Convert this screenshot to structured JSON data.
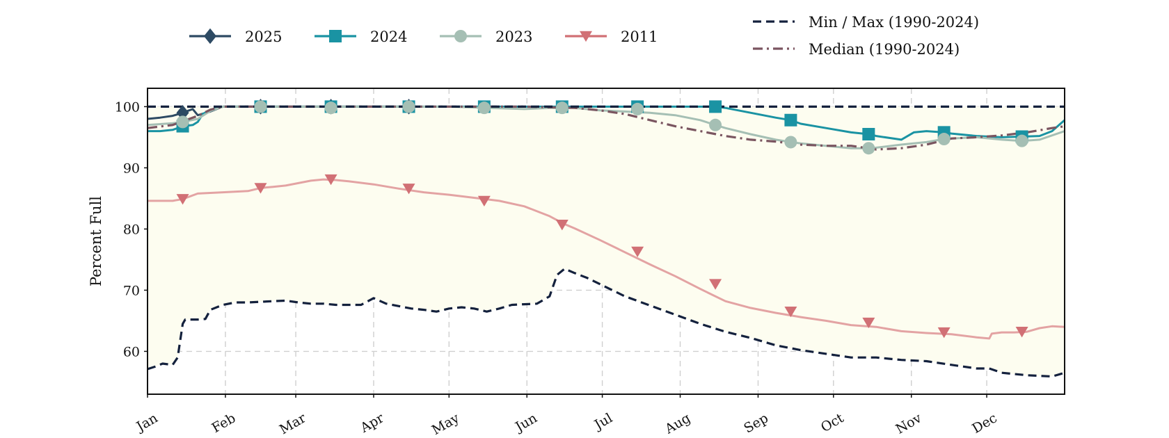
{
  "chart_data": {
    "type": "line",
    "title": "",
    "xlabel": "",
    "ylabel": "Percent Full",
    "xlim": [
      0,
      365
    ],
    "ylim": [
      53,
      103
    ],
    "y_ticks": [
      60,
      70,
      80,
      90,
      100
    ],
    "month_ticks": [
      {
        "label": "Jan",
        "day": 0
      },
      {
        "label": "Feb",
        "day": 31
      },
      {
        "label": "Mar",
        "day": 59
      },
      {
        "label": "Apr",
        "day": 90
      },
      {
        "label": "May",
        "day": 120
      },
      {
        "label": "Jun",
        "day": 151
      },
      {
        "label": "Jul",
        "day": 181
      },
      {
        "label": "Aug",
        "day": 212
      },
      {
        "label": "Sep",
        "day": 243
      },
      {
        "label": "Oct",
        "day": 273
      },
      {
        "label": "Nov",
        "day": 304
      },
      {
        "label": "Dec",
        "day": 334
      }
    ],
    "grid": true,
    "legend_position": "top",
    "shaded_band": {
      "between": [
        "Min (1990-2024)",
        "Max (1990-2024)"
      ],
      "color": "#fdfdf0"
    },
    "series": [
      {
        "name": "Max (1990-2024)",
        "legend": "Min / Max (1990-2024)",
        "color": "#14213d",
        "style": "dashed",
        "marker": "none",
        "x": [
          0,
          365
        ],
        "y": [
          100,
          100
        ]
      },
      {
        "name": "Min (1990-2024)",
        "legend": "Min / Max (1990-2024)",
        "color": "#14213d",
        "style": "dashed",
        "marker": "none",
        "x": [
          0,
          3,
          6,
          10,
          12,
          14,
          15,
          20,
          23,
          25,
          30,
          35,
          40,
          45,
          50,
          55,
          60,
          65,
          70,
          75,
          85,
          90,
          95,
          100,
          105,
          110,
          115,
          120,
          125,
          130,
          135,
          140,
          145,
          150,
          155,
          160,
          163,
          166,
          170,
          175,
          180,
          190,
          200,
          210,
          220,
          230,
          240,
          250,
          260,
          270,
          280,
          285,
          290,
          300,
          310,
          320,
          330,
          335,
          340,
          350,
          360,
          365
        ],
        "y": [
          57.1,
          57.5,
          58.0,
          57.8,
          59.0,
          64.5,
          65.2,
          65.2,
          65.3,
          66.8,
          67.6,
          68.0,
          68.0,
          68.1,
          68.2,
          68.3,
          68.0,
          67.8,
          67.8,
          67.6,
          67.6,
          68.7,
          67.8,
          67.4,
          67.0,
          66.8,
          66.5,
          67.0,
          67.2,
          67.0,
          66.5,
          67.0,
          67.6,
          67.7,
          67.8,
          69.0,
          72.5,
          73.5,
          72.8,
          72.0,
          71.0,
          69.0,
          67.5,
          66.0,
          64.5,
          63.2,
          62.2,
          61.0,
          60.2,
          59.6,
          59.0,
          59.0,
          59.0,
          58.6,
          58.4,
          57.8,
          57.2,
          57.2,
          56.5,
          56.1,
          55.9,
          56.5
        ]
      },
      {
        "name": "Median (1990-2024)",
        "legend": "Median (1990-2024)",
        "color": "#7a5560",
        "style": "dashdot",
        "marker": "none",
        "x": [
          0,
          10,
          20,
          25,
          30,
          60,
          90,
          120,
          150,
          170,
          180,
          190,
          200,
          210,
          220,
          230,
          240,
          250,
          260,
          270,
          280,
          290,
          300,
          310,
          320,
          330,
          340,
          350,
          360,
          365
        ],
        "y": [
          96.5,
          97.0,
          98.5,
          99.5,
          100,
          100,
          100,
          100,
          100,
          99.8,
          99.4,
          98.8,
          97.8,
          96.8,
          96.0,
          95.2,
          94.6,
          94.3,
          93.8,
          93.6,
          93.6,
          93.0,
          93.2,
          93.8,
          94.8,
          95.0,
          95.3,
          95.8,
          96.5,
          96.8
        ]
      },
      {
        "name": "2011",
        "legend": "2011",
        "color": "#e3a3a3",
        "style": "solid",
        "marker": "triangle-down",
        "marker_color": "#d17075",
        "x": [
          0,
          10,
          14,
          20,
          30,
          40,
          45,
          50,
          55,
          60,
          65,
          70,
          75,
          80,
          90,
          100,
          110,
          120,
          130,
          140,
          150,
          160,
          166,
          170,
          180,
          190,
          200,
          210,
          220,
          230,
          240,
          250,
          260,
          270,
          280,
          290,
          300,
          310,
          320,
          330,
          335,
          336,
          340,
          345,
          350,
          355,
          360,
          365
        ],
        "y": [
          84.6,
          84.6,
          84.9,
          85.8,
          86.0,
          86.2,
          86.7,
          86.9,
          87.1,
          87.5,
          87.9,
          88.1,
          88.0,
          87.8,
          87.3,
          86.6,
          86.0,
          85.6,
          85.1,
          84.6,
          83.7,
          82.1,
          80.8,
          80.1,
          78.2,
          76.2,
          74.2,
          72.3,
          70.2,
          68.2,
          67.1,
          66.3,
          65.6,
          65.0,
          64.3,
          64.0,
          63.3,
          63.0,
          62.8,
          62.3,
          62.1,
          62.9,
          63.1,
          63.1,
          63.2,
          63.8,
          64.1,
          64.0
        ],
        "markers_x": [
          14,
          45,
          73,
          104,
          134,
          165,
          195,
          226,
          256,
          287,
          317,
          348
        ],
        "markers_y": [
          84.9,
          86.7,
          88.1,
          86.6,
          84.6,
          80.7,
          76.3,
          71.0,
          66.5,
          64.7,
          63.1,
          63.2
        ]
      },
      {
        "name": "2023",
        "legend": "2023",
        "color": "#a5bfb4",
        "style": "solid",
        "marker": "circle",
        "marker_color": "#a5bfb4",
        "x": [
          0,
          10,
          14,
          20,
          25,
          30,
          60,
          90,
          120,
          150,
          160,
          170,
          180,
          190,
          200,
          210,
          220,
          226,
          230,
          240,
          250,
          256,
          260,
          270,
          280,
          287,
          290,
          300,
          310,
          317,
          320,
          330,
          340,
          348,
          355,
          365
        ],
        "y": [
          97.0,
          97.3,
          97.5,
          98.0,
          99.3,
          100,
          100,
          100,
          100,
          99.6,
          99.8,
          99.8,
          99.4,
          99.2,
          99.0,
          98.6,
          97.8,
          97.0,
          96.5,
          95.5,
          94.6,
          94.2,
          94.0,
          93.6,
          93.2,
          93.2,
          93.3,
          93.8,
          94.2,
          94.7,
          94.8,
          95.0,
          94.6,
          94.4,
          94.6,
          96.0
        ],
        "markers_x": [
          14,
          45,
          73,
          104,
          134,
          165,
          195,
          226,
          256,
          287,
          317,
          348
        ],
        "markers_y": [
          97.5,
          100,
          99.8,
          100,
          99.8,
          99.8,
          99.6,
          97.0,
          94.2,
          93.2,
          94.7,
          94.4
        ]
      },
      {
        "name": "2024",
        "legend": "2024",
        "color": "#1a93a3",
        "style": "solid",
        "marker": "square",
        "marker_color": "#1a93a3",
        "x": [
          0,
          5,
          10,
          14,
          18,
          20,
          22,
          25,
          30,
          60,
          90,
          120,
          150,
          180,
          210,
          226,
          230,
          240,
          250,
          256,
          260,
          270,
          280,
          287,
          290,
          300,
          305,
          310,
          317,
          320,
          330,
          340,
          348,
          355,
          360,
          365
        ],
        "y": [
          96.0,
          96.0,
          96.2,
          96.8,
          97.0,
          97.5,
          98.8,
          99.5,
          100,
          100,
          100,
          100,
          100,
          100,
          100,
          100,
          99.8,
          99.0,
          98.2,
          97.8,
          97.2,
          96.5,
          95.8,
          95.5,
          95.2,
          94.6,
          95.8,
          96.0,
          95.8,
          95.6,
          95.2,
          95.0,
          95.1,
          95.2,
          96.0,
          97.8
        ],
        "markers_x": [
          14,
          45,
          73,
          104,
          134,
          165,
          195,
          226,
          256,
          287,
          317,
          348
        ],
        "markers_y": [
          96.8,
          100,
          100,
          100,
          100,
          100,
          100,
          100,
          97.8,
          95.5,
          95.8,
          95.1
        ]
      },
      {
        "name": "2025",
        "legend": "2025",
        "color": "#2d4a63",
        "style": "solid",
        "marker": "diamond",
        "marker_color": "#2d4a63",
        "x": [
          0,
          5,
          10,
          14,
          18,
          20,
          25,
          30,
          60,
          90,
          104
        ],
        "y": [
          98.0,
          98.2,
          98.5,
          99.0,
          99.6,
          98.6,
          99.2,
          100,
          100,
          100,
          100
        ],
        "markers_x": [
          14,
          45,
          73,
          104
        ],
        "markers_y": [
          99.0,
          100,
          100,
          100
        ]
      }
    ],
    "legend": {
      "entries": [
        {
          "label": "2025",
          "color": "#2d4a63",
          "marker": "diamond",
          "style": "solid"
        },
        {
          "label": "2024",
          "color": "#1a93a3",
          "marker": "square",
          "style": "solid"
        },
        {
          "label": "2023",
          "color": "#a5bfb4",
          "marker": "circle",
          "style": "solid"
        },
        {
          "label": "2011",
          "color": "#d17075",
          "marker": "triangle-down",
          "style": "solid"
        },
        {
          "label": "Min / Max (1990-2024)",
          "color": "#14213d",
          "marker": "none",
          "style": "dashed"
        },
        {
          "label": "Median (1990-2024)",
          "color": "#7a5560",
          "marker": "none",
          "style": "dashdot"
        }
      ]
    }
  }
}
